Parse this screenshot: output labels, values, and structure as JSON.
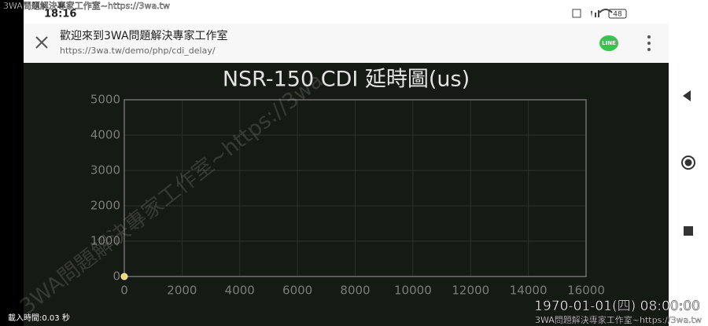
{
  "status_bar": {
    "time": "18:16",
    "battery": "48"
  },
  "overlay": {
    "top_left": "3WA問題解決專家工作室~https://3wa.tw",
    "load_time": "載入時間:0.03 秒",
    "datetime": "1970-01-01(四) 08:00:00",
    "footer": "3WA問題解決專家工作室~https://3wa.tw"
  },
  "browser": {
    "title": "歡迎來到3WA問題解決專家工作室",
    "url": "https://3wa.tw/demo/php/cdi_delay/",
    "share": "LINE"
  },
  "watermark": "3WA問題解決專家工作室~https://3wa",
  "chart_data": {
    "type": "scatter",
    "title": "NSR-150 CDI 延時圖(us)",
    "series": [
      {
        "color": "#f2d66b",
        "x": [
          0
        ],
        "values": [
          0
        ]
      }
    ],
    "xlim": [
      0,
      16000
    ],
    "xticks": [
      0,
      2000,
      4000,
      6000,
      8000,
      10000,
      12000,
      14000,
      16000
    ],
    "ylim": [
      0,
      5000
    ],
    "yticks": [
      0,
      1000,
      2000,
      3000,
      4000,
      5000
    ],
    "grid": true
  }
}
